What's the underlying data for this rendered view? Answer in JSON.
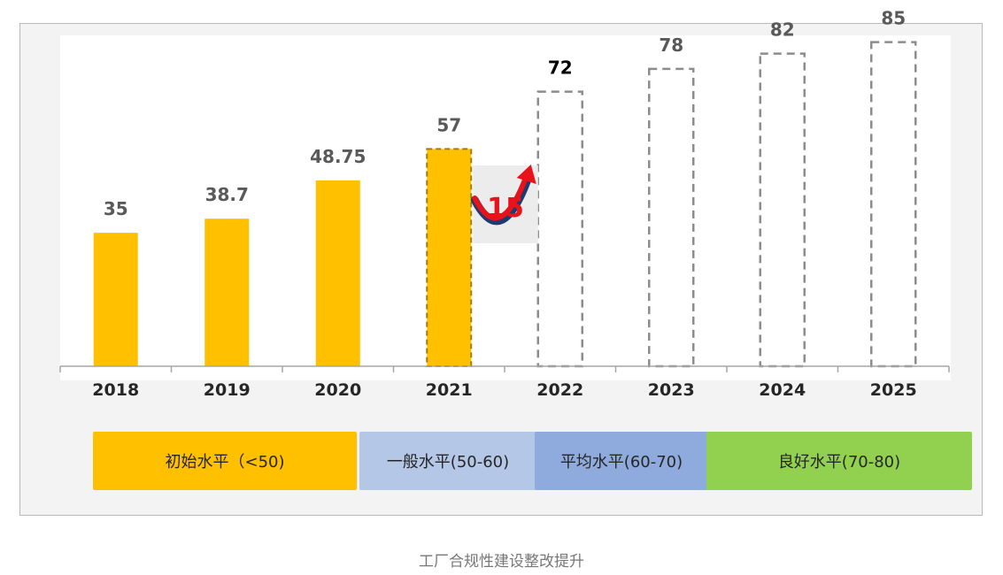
{
  "chart_data": {
    "type": "bar",
    "categories": [
      "2018",
      "2019",
      "2020",
      "2021",
      "2022",
      "2023",
      "2024",
      "2025"
    ],
    "values": [
      35,
      38.7,
      48.75,
      57,
      72,
      78,
      82,
      85
    ],
    "value_labels": [
      "35",
      "38.7",
      "48.75",
      "57",
      "72",
      "78",
      "82",
      "85"
    ],
    "bar_styles": [
      "solid",
      "solid",
      "solid",
      "solid-dashed",
      "dashed",
      "dashed",
      "dashed",
      "dashed"
    ],
    "emphasized_category": "2022",
    "ylim": [
      0,
      90
    ],
    "grid": false,
    "annotation": {
      "text": "15",
      "from": "2021",
      "to": "2022"
    },
    "colors": {
      "bar": "#ffc000",
      "bar_outline": "#a07d10",
      "dashed_outline": "#8c8c8c",
      "growth_text": "#e8121b",
      "arrow": "#e8121b",
      "arrow_dark": "#1f3b6e"
    }
  },
  "levels": [
    {
      "label": "初始水平（<50)",
      "color": "#ffc000"
    },
    {
      "label": "一般水平(50-60)",
      "color": "#b4c7e7"
    },
    {
      "label": "平均水平(60-70)",
      "color": "#8faadc"
    },
    {
      "label": "良好水平(70-80)",
      "color": "#92d050"
    }
  ],
  "caption": "工厂合规性建设整改提升"
}
